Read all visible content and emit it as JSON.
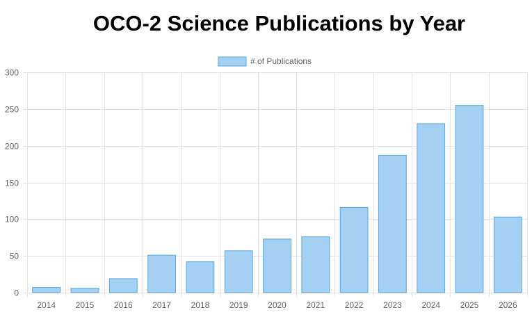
{
  "colors": {
    "bar_fill": "#a3d0f3",
    "bar_stroke": "#5aa7dc",
    "grid": "#e5e5e5",
    "axis_text": "#666666",
    "title_text": "#000000"
  },
  "chart_data": {
    "type": "bar",
    "title": "OCO-2 Science Publications by Year",
    "xlabel": "",
    "ylabel": "",
    "categories": [
      "2014",
      "2015",
      "2016",
      "2017",
      "2018",
      "2019",
      "2020",
      "2021",
      "2022",
      "2023",
      "2024",
      "2025",
      "2026"
    ],
    "series": [
      {
        "name": "# of Publications",
        "values": [
          7,
          6,
          19,
          51,
          42,
          57,
          73,
          76,
          116,
          187,
          230,
          255,
          103
        ]
      }
    ],
    "ylim": [
      0,
      300
    ],
    "yticks": [
      0,
      50,
      100,
      150,
      200,
      250,
      300
    ],
    "grid": true,
    "legend_position": "top-center"
  }
}
